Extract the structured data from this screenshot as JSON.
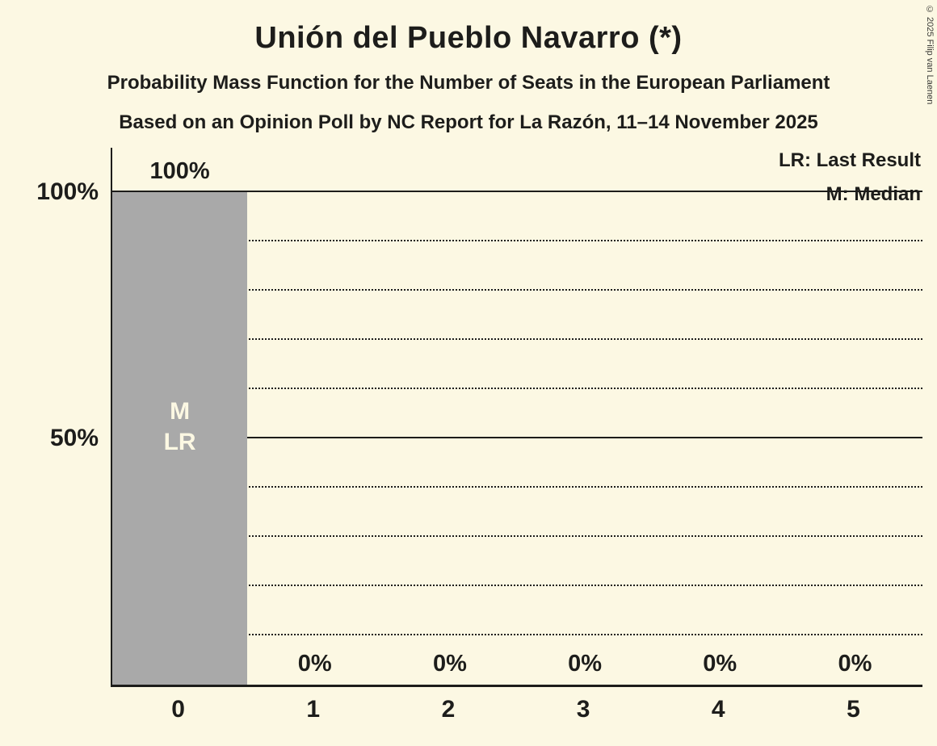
{
  "title": "Unión del Pueblo Navarro (*)",
  "subtitle_line1": "Probability Mass Function for the Number of Seats in the European Parliament",
  "subtitle_line2": "Based on an Opinion Poll by NC Report for La Razón, 11–14 November 2025",
  "legend": {
    "last_result": "LR: Last Result",
    "median": "M: Median"
  },
  "copyright": "© 2025 Filip van Laenen",
  "colors": {
    "bg": "#FCF8E3",
    "bar": "#A9A9A9",
    "text": "#1D1D1B",
    "bar-label": "#FCF8E3"
  },
  "y_axis": {
    "ticks": [
      {
        "label": "100%",
        "value": 100
      },
      {
        "label": "50%",
        "value": 50
      }
    ]
  },
  "chart_data": {
    "type": "bar",
    "title": "Unión del Pueblo Navarro (*)",
    "categories": [
      "0",
      "1",
      "2",
      "3",
      "4",
      "5"
    ],
    "values": [
      100,
      0,
      0,
      0,
      0,
      0
    ],
    "value_labels": [
      "100%",
      "0%",
      "0%",
      "0%",
      "0%",
      "0%"
    ],
    "bar_annotations": [
      [
        "M",
        "LR"
      ],
      [],
      [],
      [],
      [],
      []
    ],
    "annotation_meanings": {
      "LR": "Last Result",
      "M": "Median"
    },
    "xlabel": "",
    "ylabel": "",
    "ylim": [
      0,
      100
    ],
    "gridlines": {
      "solid": [
        50,
        100
      ],
      "dotted": [
        10,
        20,
        30,
        40,
        60,
        70,
        80,
        90
      ]
    },
    "grid": true,
    "legend_position": "top-right"
  }
}
